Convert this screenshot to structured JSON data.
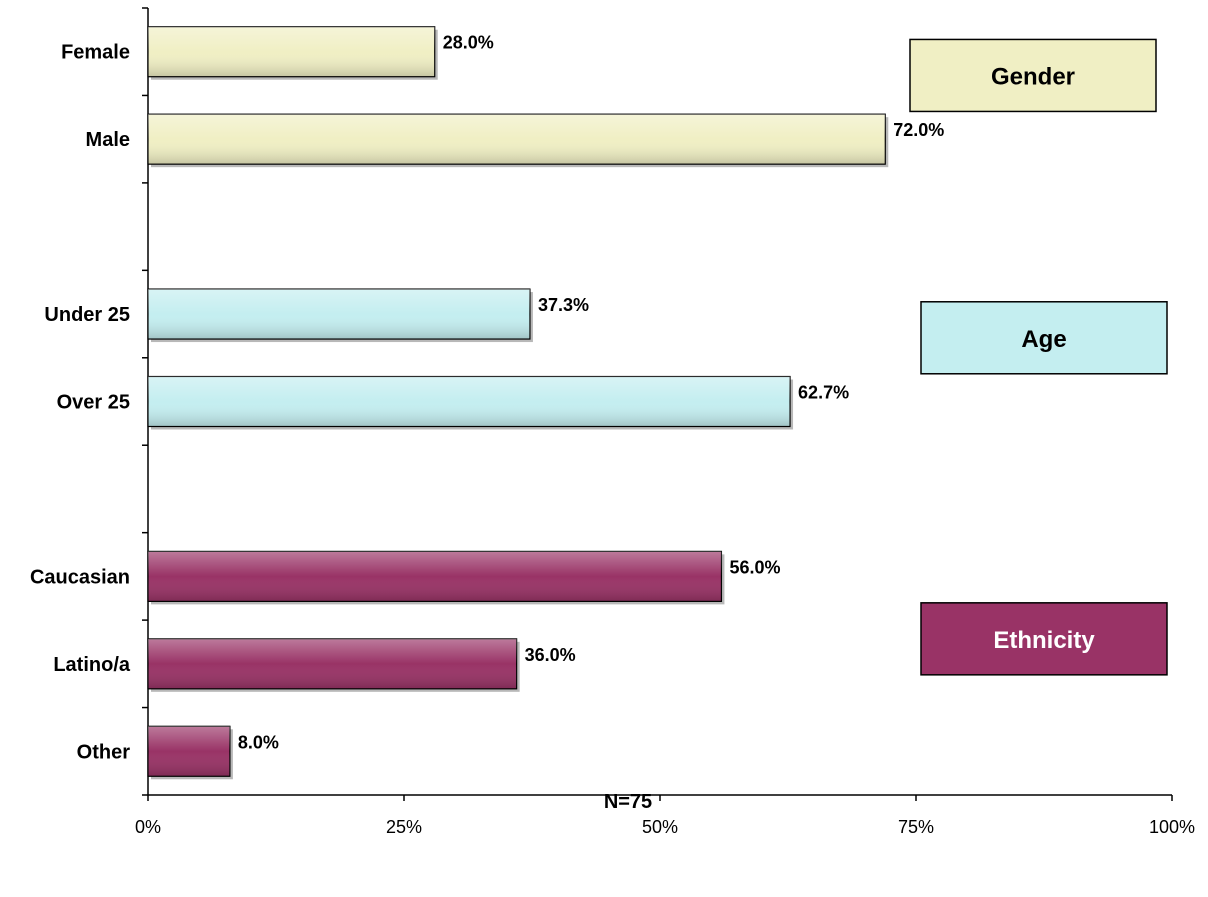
{
  "chart_data": {
    "type": "bar",
    "orientation": "horizontal",
    "xlabel": "N=75",
    "xlim": [
      0,
      100
    ],
    "x_tick_labels": [
      "0%",
      "25%",
      "50%",
      "75%",
      "100%"
    ],
    "grid": false,
    "groups": [
      {
        "name": "Gender",
        "color": "#f0efc4",
        "text_color": "#000000",
        "categories": [
          "Female",
          "Male"
        ],
        "values": [
          28.0,
          72.0
        ],
        "value_labels": [
          "28.0%",
          "72.0%"
        ]
      },
      {
        "name": "Age",
        "color": "#c4eef0",
        "text_color": "#000000",
        "categories": [
          "Under 25",
          "Over 25"
        ],
        "values": [
          37.3,
          62.7
        ],
        "value_labels": [
          "37.3%",
          "62.7%"
        ]
      },
      {
        "name": "Ethnicity",
        "color": "#993366",
        "text_color": "#ffffff",
        "categories": [
          "Caucasian",
          "Latino/a",
          "Other"
        ],
        "values": [
          56.0,
          36.0,
          8.0
        ],
        "value_labels": [
          "56.0%",
          "36.0%",
          "8.0%"
        ]
      }
    ]
  }
}
